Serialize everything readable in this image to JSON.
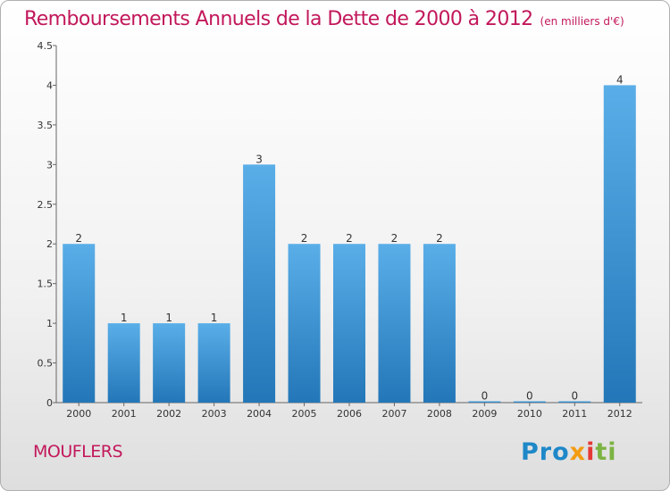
{
  "title": "Remboursements Annuels de la Dette de 2000 à 2012",
  "unit_note": "(en milliers d'€)",
  "commune": "MOUFLERS",
  "brand": {
    "p1": "Pro",
    "p2": "x",
    "p3": "i",
    "p4": "ti"
  },
  "colors": {
    "title": "#c2185b",
    "bar_top": "#5aaee8",
    "bar_bottom": "#2377b8"
  },
  "chart_data": {
    "type": "bar",
    "categories": [
      "2000",
      "2001",
      "2002",
      "2003",
      "2004",
      "2005",
      "2006",
      "2007",
      "2008",
      "2009",
      "2010",
      "2011",
      "2012"
    ],
    "values": [
      2,
      1,
      1,
      1,
      3,
      2,
      2,
      2,
      2,
      0,
      0,
      0,
      4
    ],
    "data_labels": [
      "2",
      "1",
      "1",
      "1",
      "3",
      "2",
      "2",
      "2",
      "2",
      "0",
      "0",
      "0",
      "4"
    ],
    "ylim": [
      0,
      4.5
    ],
    "yticks": [
      0,
      0.5,
      1,
      1.5,
      2,
      2.5,
      3,
      3.5,
      4,
      4.5
    ],
    "ytick_labels": [
      "0",
      "0.5",
      "1",
      "1.5",
      "2",
      "2.5",
      "3",
      "3.5",
      "4",
      "4.5"
    ],
    "grid": false
  }
}
